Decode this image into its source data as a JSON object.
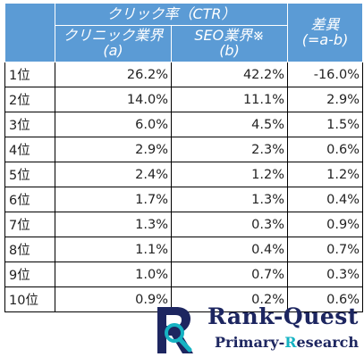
{
  "table": {
    "group_header": "クリック率（CTR）",
    "col_a_line1": "クリニック業界",
    "col_a_line2": "(a)",
    "col_b_line1": "SEO業界※",
    "col_b_line2": "(b)",
    "diff_line1": "差異",
    "diff_line2": "(=a-b)",
    "rows": [
      {
        "rank": "1位",
        "a": "26.2%",
        "b": "42.2%",
        "diff": "-16.0%"
      },
      {
        "rank": "2位",
        "a": "14.0%",
        "b": "11.1%",
        "diff": "2.9%"
      },
      {
        "rank": "3位",
        "a": "6.0%",
        "b": "4.5%",
        "diff": "1.5%"
      },
      {
        "rank": "4位",
        "a": "2.9%",
        "b": "2.3%",
        "diff": "0.6%"
      },
      {
        "rank": "5位",
        "a": "2.4%",
        "b": "1.2%",
        "diff": "1.2%"
      },
      {
        "rank": "6位",
        "a": "1.7%",
        "b": "1.3%",
        "diff": "0.4%"
      },
      {
        "rank": "7位",
        "a": "1.3%",
        "b": "0.3%",
        "diff": "0.9%"
      },
      {
        "rank": "8位",
        "a": "1.1%",
        "b": "0.4%",
        "diff": "0.7%"
      },
      {
        "rank": "9位",
        "a": "1.0%",
        "b": "0.7%",
        "diff": "0.3%"
      },
      {
        "rank": "10位",
        "a": "0.9%",
        "b": "0.2%",
        "diff": "0.6%"
      }
    ]
  },
  "logo": {
    "title_part1": "Rank-",
    "title_part2": "Quest",
    "sub_part1": "Primary-",
    "sub_accent": "R",
    "sub_part2": "esearch"
  },
  "colors": {
    "header_bg": "#5b9bd5",
    "brand_navy": "#1d2660",
    "brand_cyan": "#16b3c3"
  }
}
